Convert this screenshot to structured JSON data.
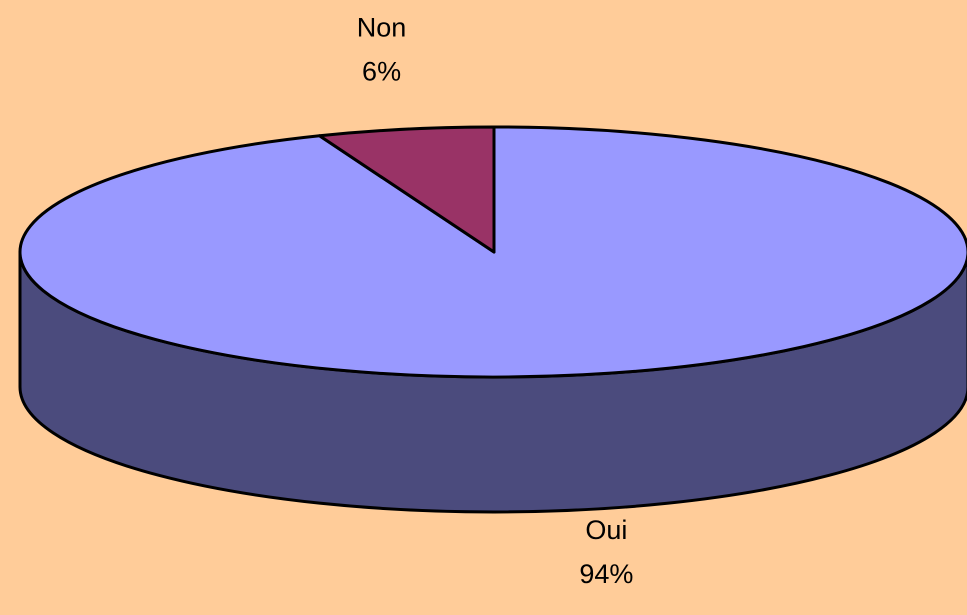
{
  "chart_data": {
    "type": "pie",
    "categories": [
      "Oui",
      "Non"
    ],
    "values": [
      94,
      6
    ],
    "value_labels": [
      "94%",
      "6%"
    ],
    "colors": [
      "#9999FF",
      "#993366"
    ],
    "side_colors": [
      "#4B4B7D",
      "#66224A"
    ]
  }
}
